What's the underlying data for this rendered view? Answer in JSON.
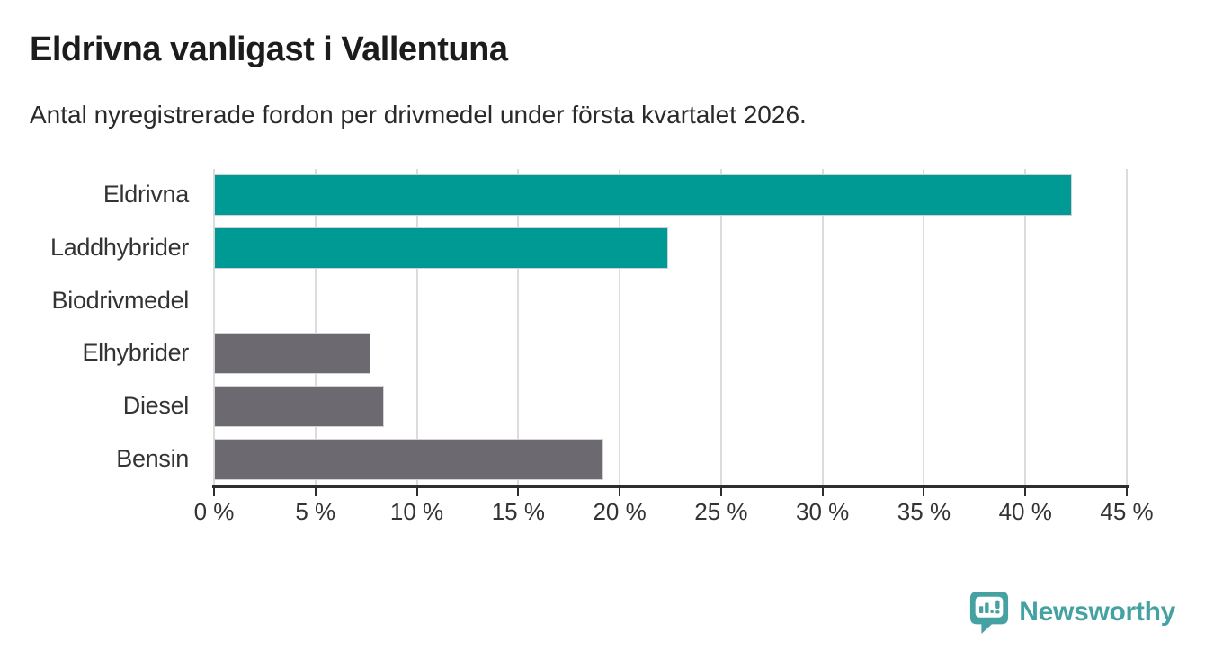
{
  "header": {
    "title": "Eldrivna vanligast i Vallentuna",
    "subtitle": "Antal nyregistrerade fordon per drivmedel under första kvartalet 2026."
  },
  "chart_data": {
    "type": "bar",
    "orientation": "horizontal",
    "title": "Eldrivna vanligast i Vallentuna",
    "subtitle": "Antal nyregistrerade fordon per drivmedel under första kvartalet 2026.",
    "categories": [
      "Eldrivna",
      "Laddhybrider",
      "Biodrivmedel",
      "Elhybrider",
      "Diesel",
      "Bensin"
    ],
    "values": [
      42.3,
      22.4,
      0,
      7.7,
      8.4,
      19.2
    ],
    "unit": "%",
    "bar_colors": [
      "#009a95",
      "#009a95",
      "#009a95",
      "#6c6970",
      "#6c6970",
      "#6c6970"
    ],
    "xlim": [
      0,
      45
    ],
    "x_ticks": [
      0,
      5,
      10,
      15,
      20,
      25,
      30,
      35,
      40,
      45
    ],
    "x_tick_label_format": "{v} %",
    "grid": "vertical",
    "xlabel": "",
    "ylabel": "",
    "legend": "none",
    "value_labels": "none"
  },
  "colors": {
    "highlight_teal": "#009a95",
    "muted_gray": "#6c6970",
    "gridline": "#dcdcdc",
    "axis": "#2e2e2e",
    "title_text": "#1c1c1c",
    "body_text": "#333333",
    "logo_teal": "#46a2a2"
  },
  "footer": {
    "brand": "Newsworthy"
  }
}
